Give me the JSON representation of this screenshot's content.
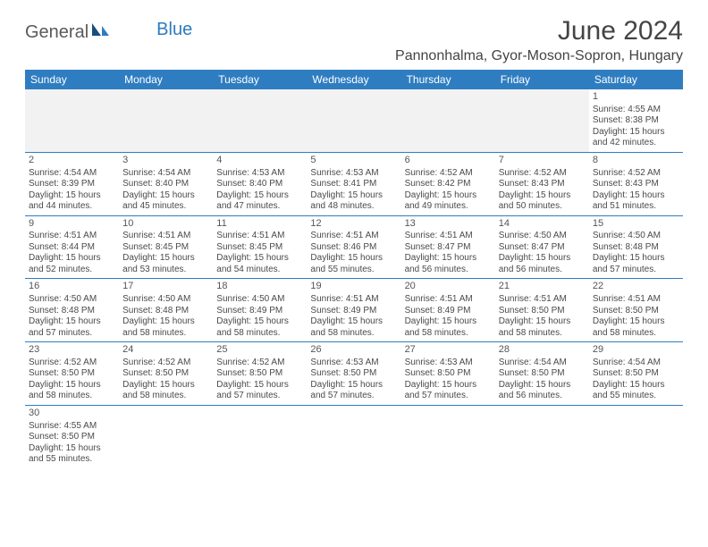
{
  "brand": {
    "part1": "General",
    "part2": "Blue"
  },
  "title": "June 2024",
  "location": "Pannonhalma, Gyor-Moson-Sopron, Hungary",
  "colors": {
    "header_bg": "#2f7dc1",
    "header_text": "#ffffff",
    "row_border": "#2f7dc1",
    "blank_bg": "#f2f2f2",
    "body_text": "#4a4a4a",
    "title_text": "#444444",
    "brand_gray": "#5a5a5a",
    "brand_blue": "#2b7bbf"
  },
  "day_headers": [
    "Sunday",
    "Monday",
    "Tuesday",
    "Wednesday",
    "Thursday",
    "Friday",
    "Saturday"
  ],
  "weeks": [
    [
      {
        "blank": true
      },
      {
        "blank": true
      },
      {
        "blank": true
      },
      {
        "blank": true
      },
      {
        "blank": true
      },
      {
        "blank": true
      },
      {
        "n": "1",
        "sunrise": "Sunrise: 4:55 AM",
        "sunset": "Sunset: 8:38 PM",
        "daylight": "Daylight: 15 hours and 42 minutes."
      }
    ],
    [
      {
        "n": "2",
        "sunrise": "Sunrise: 4:54 AM",
        "sunset": "Sunset: 8:39 PM",
        "daylight": "Daylight: 15 hours and 44 minutes."
      },
      {
        "n": "3",
        "sunrise": "Sunrise: 4:54 AM",
        "sunset": "Sunset: 8:40 PM",
        "daylight": "Daylight: 15 hours and 45 minutes."
      },
      {
        "n": "4",
        "sunrise": "Sunrise: 4:53 AM",
        "sunset": "Sunset: 8:40 PM",
        "daylight": "Daylight: 15 hours and 47 minutes."
      },
      {
        "n": "5",
        "sunrise": "Sunrise: 4:53 AM",
        "sunset": "Sunset: 8:41 PM",
        "daylight": "Daylight: 15 hours and 48 minutes."
      },
      {
        "n": "6",
        "sunrise": "Sunrise: 4:52 AM",
        "sunset": "Sunset: 8:42 PM",
        "daylight": "Daylight: 15 hours and 49 minutes."
      },
      {
        "n": "7",
        "sunrise": "Sunrise: 4:52 AM",
        "sunset": "Sunset: 8:43 PM",
        "daylight": "Daylight: 15 hours and 50 minutes."
      },
      {
        "n": "8",
        "sunrise": "Sunrise: 4:52 AM",
        "sunset": "Sunset: 8:43 PM",
        "daylight": "Daylight: 15 hours and 51 minutes."
      }
    ],
    [
      {
        "n": "9",
        "sunrise": "Sunrise: 4:51 AM",
        "sunset": "Sunset: 8:44 PM",
        "daylight": "Daylight: 15 hours and 52 minutes."
      },
      {
        "n": "10",
        "sunrise": "Sunrise: 4:51 AM",
        "sunset": "Sunset: 8:45 PM",
        "daylight": "Daylight: 15 hours and 53 minutes."
      },
      {
        "n": "11",
        "sunrise": "Sunrise: 4:51 AM",
        "sunset": "Sunset: 8:45 PM",
        "daylight": "Daylight: 15 hours and 54 minutes."
      },
      {
        "n": "12",
        "sunrise": "Sunrise: 4:51 AM",
        "sunset": "Sunset: 8:46 PM",
        "daylight": "Daylight: 15 hours and 55 minutes."
      },
      {
        "n": "13",
        "sunrise": "Sunrise: 4:51 AM",
        "sunset": "Sunset: 8:47 PM",
        "daylight": "Daylight: 15 hours and 56 minutes."
      },
      {
        "n": "14",
        "sunrise": "Sunrise: 4:50 AM",
        "sunset": "Sunset: 8:47 PM",
        "daylight": "Daylight: 15 hours and 56 minutes."
      },
      {
        "n": "15",
        "sunrise": "Sunrise: 4:50 AM",
        "sunset": "Sunset: 8:48 PM",
        "daylight": "Daylight: 15 hours and 57 minutes."
      }
    ],
    [
      {
        "n": "16",
        "sunrise": "Sunrise: 4:50 AM",
        "sunset": "Sunset: 8:48 PM",
        "daylight": "Daylight: 15 hours and 57 minutes."
      },
      {
        "n": "17",
        "sunrise": "Sunrise: 4:50 AM",
        "sunset": "Sunset: 8:48 PM",
        "daylight": "Daylight: 15 hours and 58 minutes."
      },
      {
        "n": "18",
        "sunrise": "Sunrise: 4:50 AM",
        "sunset": "Sunset: 8:49 PM",
        "daylight": "Daylight: 15 hours and 58 minutes."
      },
      {
        "n": "19",
        "sunrise": "Sunrise: 4:51 AM",
        "sunset": "Sunset: 8:49 PM",
        "daylight": "Daylight: 15 hours and 58 minutes."
      },
      {
        "n": "20",
        "sunrise": "Sunrise: 4:51 AM",
        "sunset": "Sunset: 8:49 PM",
        "daylight": "Daylight: 15 hours and 58 minutes."
      },
      {
        "n": "21",
        "sunrise": "Sunrise: 4:51 AM",
        "sunset": "Sunset: 8:50 PM",
        "daylight": "Daylight: 15 hours and 58 minutes."
      },
      {
        "n": "22",
        "sunrise": "Sunrise: 4:51 AM",
        "sunset": "Sunset: 8:50 PM",
        "daylight": "Daylight: 15 hours and 58 minutes."
      }
    ],
    [
      {
        "n": "23",
        "sunrise": "Sunrise: 4:52 AM",
        "sunset": "Sunset: 8:50 PM",
        "daylight": "Daylight: 15 hours and 58 minutes."
      },
      {
        "n": "24",
        "sunrise": "Sunrise: 4:52 AM",
        "sunset": "Sunset: 8:50 PM",
        "daylight": "Daylight: 15 hours and 58 minutes."
      },
      {
        "n": "25",
        "sunrise": "Sunrise: 4:52 AM",
        "sunset": "Sunset: 8:50 PM",
        "daylight": "Daylight: 15 hours and 57 minutes."
      },
      {
        "n": "26",
        "sunrise": "Sunrise: 4:53 AM",
        "sunset": "Sunset: 8:50 PM",
        "daylight": "Daylight: 15 hours and 57 minutes."
      },
      {
        "n": "27",
        "sunrise": "Sunrise: 4:53 AM",
        "sunset": "Sunset: 8:50 PM",
        "daylight": "Daylight: 15 hours and 57 minutes."
      },
      {
        "n": "28",
        "sunrise": "Sunrise: 4:54 AM",
        "sunset": "Sunset: 8:50 PM",
        "daylight": "Daylight: 15 hours and 56 minutes."
      },
      {
        "n": "29",
        "sunrise": "Sunrise: 4:54 AM",
        "sunset": "Sunset: 8:50 PM",
        "daylight": "Daylight: 15 hours and 55 minutes."
      }
    ],
    [
      {
        "n": "30",
        "sunrise": "Sunrise: 4:55 AM",
        "sunset": "Sunset: 8:50 PM",
        "daylight": "Daylight: 15 hours and 55 minutes."
      },
      {
        "blank": true
      },
      {
        "blank": true
      },
      {
        "blank": true
      },
      {
        "blank": true
      },
      {
        "blank": true
      },
      {
        "blank": true
      }
    ]
  ]
}
